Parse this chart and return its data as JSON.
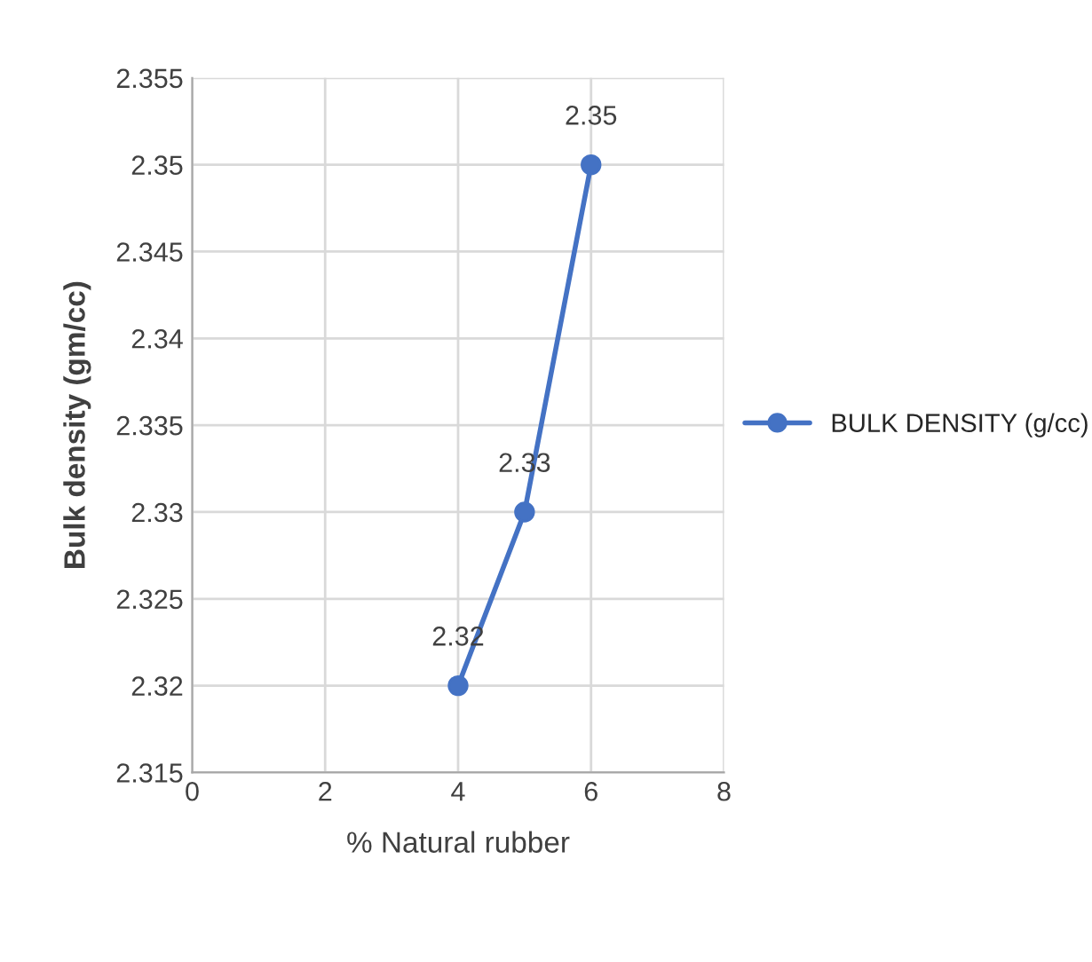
{
  "chart_data": {
    "type": "line",
    "x": [
      4,
      5,
      6
    ],
    "series": [
      {
        "name": "BULK DENSITY (g/cc)",
        "color": "#4472c4",
        "values": [
          2.32,
          2.33,
          2.35
        ]
      }
    ],
    "xlabel": "% Natural rubber",
    "ylabel": "Bulk density (gm/cc)",
    "xlim": [
      0,
      8
    ],
    "xticks": [
      0,
      2,
      4,
      6,
      8
    ],
    "ylim": [
      2.315,
      2.355
    ],
    "yticks": [
      2.315,
      2.32,
      2.325,
      2.33,
      2.335,
      2.34,
      2.345,
      2.35,
      2.355
    ],
    "grid": true,
    "legend": "right",
    "marker": "circle",
    "line_style": "solid",
    "data_labels": true
  }
}
